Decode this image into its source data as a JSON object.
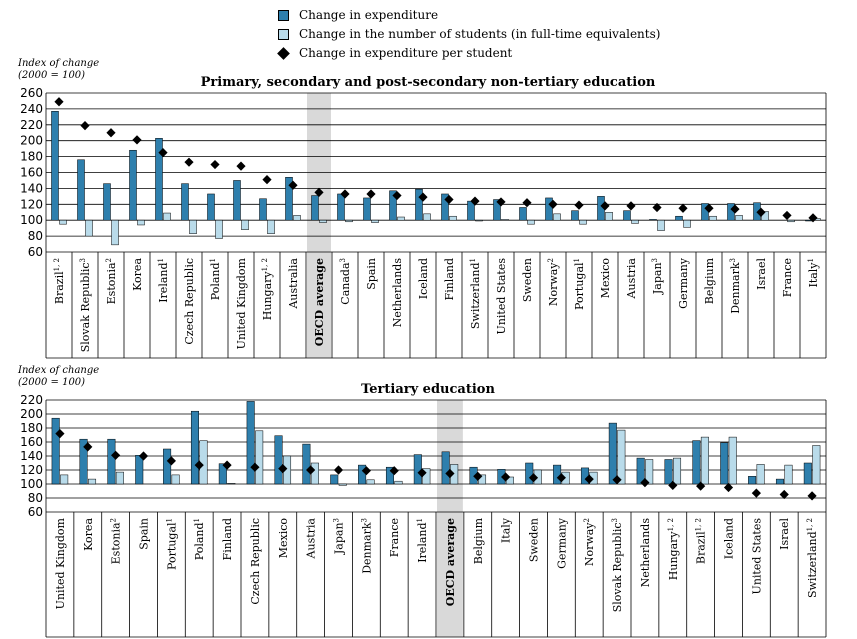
{
  "legend": {
    "expenditure": "Change in expenditure",
    "students": "Change in the number of students (in full-time equivalents)",
    "per_student": "Change in expenditure per student"
  },
  "colors": {
    "expenditure": "#2e7fad",
    "students": "#b9dbea",
    "marker": "#000000",
    "average_band": "#d9d9d9"
  },
  "chart_data": [
    {
      "type": "bar",
      "title": "Primary, secondary and post-secondary non-tertiary education",
      "ylabel": "Index of change (2000 = 100)",
      "ylabel_line1": "Index of change",
      "ylabel_line2": "(2000 = 100)",
      "ylim": [
        60,
        260
      ],
      "yticks": [
        60,
        80,
        100,
        120,
        140,
        160,
        180,
        200,
        220,
        240,
        260
      ],
      "grid": true,
      "highlight_category": "OECD average",
      "categories": [
        {
          "label": "Brazil",
          "sup": "1, 2"
        },
        {
          "label": "Slovak Republic",
          "sup": "3"
        },
        {
          "label": "Estonia",
          "sup": "2"
        },
        {
          "label": "Korea",
          "sup": ""
        },
        {
          "label": "Ireland",
          "sup": "1"
        },
        {
          "label": "Czech Republic",
          "sup": ""
        },
        {
          "label": "Poland",
          "sup": "1"
        },
        {
          "label": "United Kingdom",
          "sup": ""
        },
        {
          "label": "Hungary",
          "sup": "1, 2"
        },
        {
          "label": "Australia",
          "sup": ""
        },
        {
          "label": "OECD average",
          "sup": ""
        },
        {
          "label": "Canada",
          "sup": "3"
        },
        {
          "label": "Spain",
          "sup": ""
        },
        {
          "label": "Netherlands",
          "sup": ""
        },
        {
          "label": "Iceland",
          "sup": ""
        },
        {
          "label": "Finland",
          "sup": ""
        },
        {
          "label": "Switzerland",
          "sup": "1"
        },
        {
          "label": "United States",
          "sup": ""
        },
        {
          "label": "Sweden",
          "sup": ""
        },
        {
          "label": "Norway",
          "sup": "2"
        },
        {
          "label": "Portugal",
          "sup": "1"
        },
        {
          "label": "Mexico",
          "sup": ""
        },
        {
          "label": "Austria",
          "sup": ""
        },
        {
          "label": "Japan",
          "sup": "3"
        },
        {
          "label": "Germany",
          "sup": ""
        },
        {
          "label": "Belgium",
          "sup": ""
        },
        {
          "label": "Denmark",
          "sup": "3"
        },
        {
          "label": "Israel",
          "sup": ""
        },
        {
          "label": "France",
          "sup": ""
        },
        {
          "label": "Italy",
          "sup": "1"
        }
      ],
      "series": [
        {
          "name": "Change in expenditure",
          "values": [
            237,
            176,
            146,
            188,
            203,
            146,
            133,
            150,
            127,
            154,
            131,
            133,
            128,
            137,
            139,
            133,
            124,
            126,
            116,
            128,
            112,
            130,
            112,
            101,
            105,
            121,
            121,
            122,
            100,
            99
          ]
        },
        {
          "name": "Change in the number of students (in full-time equivalents)",
          "values": [
            95,
            80,
            69,
            94,
            109,
            83,
            77,
            88,
            83,
            106,
            97,
            98,
            97,
            104,
            108,
            105,
            99,
            101,
            95,
            108,
            95,
            110,
            96,
            87,
            91,
            105,
            106,
            111,
            98,
            102
          ]
        },
        {
          "name": "Change in expenditure per student",
          "values": [
            249,
            219,
            210,
            201,
            185,
            173,
            170,
            168,
            151,
            144,
            135,
            133,
            133,
            131,
            129,
            126,
            124,
            123,
            122,
            120,
            119,
            118,
            118,
            116,
            115,
            115,
            114,
            110,
            106,
            103
          ]
        }
      ]
    },
    {
      "type": "bar",
      "title": "Tertiary education",
      "ylabel": "Index of change (2000 = 100)",
      "ylabel_line1": "Index of change",
      "ylabel_line2": "(2000 = 100)",
      "ylim": [
        60,
        220
      ],
      "yticks": [
        60,
        80,
        100,
        120,
        140,
        160,
        180,
        200,
        220
      ],
      "grid": true,
      "highlight_category": "OECD average",
      "categories": [
        {
          "label": "United Kingdom",
          "sup": ""
        },
        {
          "label": "Korea",
          "sup": ""
        },
        {
          "label": "Estonia",
          "sup": "2"
        },
        {
          "label": "Spain",
          "sup": ""
        },
        {
          "label": "Portugal",
          "sup": "1"
        },
        {
          "label": "Poland",
          "sup": "1"
        },
        {
          "label": "Finland",
          "sup": ""
        },
        {
          "label": "Czech Republic",
          "sup": ""
        },
        {
          "label": "Mexico",
          "sup": ""
        },
        {
          "label": "Austria",
          "sup": ""
        },
        {
          "label": "Japan",
          "sup": "3"
        },
        {
          "label": "Denmark",
          "sup": "3"
        },
        {
          "label": "France",
          "sup": ""
        },
        {
          "label": "Ireland",
          "sup": "1"
        },
        {
          "label": "OECD average",
          "sup": ""
        },
        {
          "label": "Belgium",
          "sup": ""
        },
        {
          "label": "Italy",
          "sup": ""
        },
        {
          "label": "Sweden",
          "sup": ""
        },
        {
          "label": "Germany",
          "sup": ""
        },
        {
          "label": "Norway",
          "sup": "2"
        },
        {
          "label": "Slovak Republic",
          "sup": "3"
        },
        {
          "label": "Netherlands",
          "sup": ""
        },
        {
          "label": "Hungary",
          "sup": "1, 2"
        },
        {
          "label": "Brazil",
          "sup": "1, 2"
        },
        {
          "label": "Iceland",
          "sup": ""
        },
        {
          "label": "United States",
          "sup": ""
        },
        {
          "label": "Israel",
          "sup": ""
        },
        {
          "label": "Switzerland",
          "sup": "1, 2"
        }
      ],
      "series": [
        {
          "name": "Change in expenditure",
          "values": [
            194,
            164,
            164,
            141,
            150,
            204,
            129,
            218,
            169,
            157,
            113,
            127,
            124,
            142,
            146,
            124,
            121,
            130,
            127,
            123,
            187,
            137,
            135,
            162,
            159,
            111,
            107,
            130
          ]
        },
        {
          "name": "Change in the number of students (in full-time equivalents)",
          "values": [
            113,
            107,
            117,
            100,
            113,
            162,
            101,
            176,
            140,
            130,
            98,
            106,
            104,
            122,
            128,
            113,
            110,
            120,
            117,
            117,
            177,
            135,
            137,
            167,
            167,
            128,
            127,
            155
          ]
        },
        {
          "name": "Change in expenditure per student",
          "values": [
            172,
            153,
            141,
            140,
            133,
            127,
            127,
            124,
            122,
            120,
            120,
            119,
            119,
            116,
            115,
            111,
            110,
            109,
            109,
            107,
            106,
            102,
            98,
            97,
            95,
            87,
            85,
            83
          ]
        }
      ]
    }
  ]
}
